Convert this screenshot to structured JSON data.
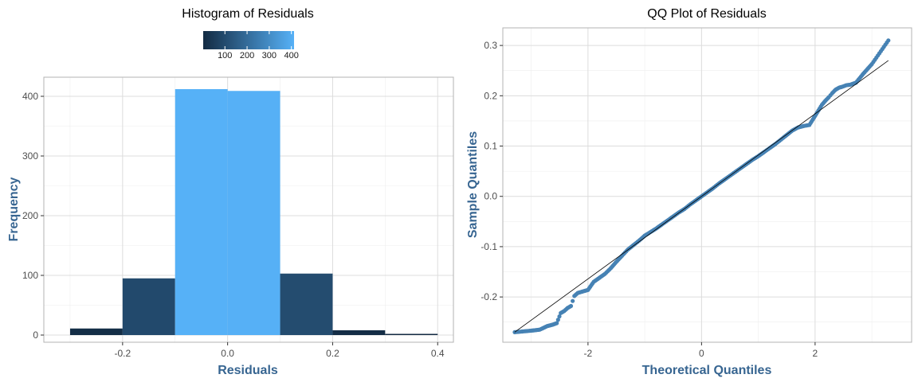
{
  "chart_data": [
    {
      "type": "bar",
      "title": "Histogram of Residuals",
      "xlabel": "Residuals",
      "ylabel": "Frequency",
      "bins": [
        {
          "x0": -0.3,
          "x1": -0.2,
          "value": 11
        },
        {
          "x0": -0.2,
          "x1": -0.1,
          "value": 95
        },
        {
          "x0": -0.1,
          "x1": 0.0,
          "value": 412
        },
        {
          "x0": 0.0,
          "x1": 0.1,
          "value": 409
        },
        {
          "x0": 0.1,
          "x1": 0.2,
          "value": 103
        },
        {
          "x0": 0.2,
          "x1": 0.3,
          "value": 8
        },
        {
          "x0": 0.3,
          "x1": 0.4,
          "value": 2
        }
      ],
      "xlim": [
        -0.35,
        0.43
      ],
      "ylim": [
        -12,
        432
      ],
      "xticks": [
        -0.2,
        0.0,
        0.2,
        0.4
      ],
      "xtick_labels": [
        "-0.2",
        "0.0",
        "0.2",
        "0.4"
      ],
      "yticks": [
        0,
        100,
        200,
        300,
        400
      ],
      "ytick_labels": [
        "0",
        "100",
        "200",
        "300",
        "400"
      ],
      "grid": true,
      "fill_scale": {
        "low": "#132B43",
        "high": "#56B1F7",
        "min": 2,
        "max": 412
      },
      "legend": {
        "position": "top",
        "ticks": [
          100,
          200,
          300,
          400
        ],
        "labels": [
          "100",
          "200",
          "300",
          "400"
        ]
      }
    },
    {
      "type": "scatter",
      "title": "QQ Plot of Residuals",
      "xlabel": "Theoretical Quantiles",
      "ylabel": "Sample Quantiles",
      "xlim": [
        -3.5,
        3.7
      ],
      "ylim": [
        -0.29,
        0.335
      ],
      "xticks": [
        -2,
        0,
        2
      ],
      "xtick_labels": [
        "-2",
        "0",
        "2"
      ],
      "yticks": [
        -0.2,
        -0.1,
        0.0,
        0.1,
        0.2,
        0.3
      ],
      "ytick_labels": [
        "-0.2",
        "-0.1",
        "0.0",
        "0.1",
        "0.2",
        "0.3"
      ],
      "grid": true,
      "point_color": "#4682B4",
      "reference_line": {
        "x": [
          -3.29,
          3.29
        ],
        "y": [
          -0.27,
          0.27
        ]
      },
      "points": [
        [
          -3.29,
          -0.27
        ],
        [
          -3.0,
          -0.267
        ],
        [
          -2.85,
          -0.265
        ],
        [
          -2.72,
          -0.258
        ],
        [
          -2.62,
          -0.255
        ],
        [
          -2.55,
          -0.252
        ],
        [
          -2.48,
          -0.232
        ],
        [
          -2.42,
          -0.228
        ],
        [
          -2.36,
          -0.222
        ],
        [
          -2.3,
          -0.218
        ],
        [
          -2.24,
          -0.198
        ],
        [
          -2.18,
          -0.192
        ],
        [
          -2.12,
          -0.19
        ],
        [
          -2.06,
          -0.188
        ],
        [
          -2.0,
          -0.186
        ],
        [
          -1.9,
          -0.17
        ],
        [
          -1.8,
          -0.162
        ],
        [
          -1.7,
          -0.154
        ],
        [
          -1.6,
          -0.143
        ],
        [
          -1.5,
          -0.13
        ],
        [
          -1.4,
          -0.118
        ],
        [
          -1.3,
          -0.106
        ],
        [
          -1.2,
          -0.097
        ],
        [
          -1.1,
          -0.088
        ],
        [
          -1.0,
          -0.078
        ],
        [
          -0.9,
          -0.071
        ],
        [
          -0.8,
          -0.064
        ],
        [
          -0.7,
          -0.056
        ],
        [
          -0.6,
          -0.048
        ],
        [
          -0.5,
          -0.04
        ],
        [
          -0.4,
          -0.032
        ],
        [
          -0.3,
          -0.025
        ],
        [
          -0.2,
          -0.016
        ],
        [
          -0.1,
          -0.008
        ],
        [
          0.0,
          0.0
        ],
        [
          0.1,
          0.008
        ],
        [
          0.2,
          0.016
        ],
        [
          0.3,
          0.025
        ],
        [
          0.4,
          0.033
        ],
        [
          0.5,
          0.041
        ],
        [
          0.6,
          0.049
        ],
        [
          0.7,
          0.057
        ],
        [
          0.8,
          0.065
        ],
        [
          0.9,
          0.073
        ],
        [
          1.0,
          0.08
        ],
        [
          1.1,
          0.088
        ],
        [
          1.2,
          0.096
        ],
        [
          1.3,
          0.104
        ],
        [
          1.4,
          0.113
        ],
        [
          1.5,
          0.122
        ],
        [
          1.6,
          0.131
        ],
        [
          1.7,
          0.137
        ],
        [
          1.8,
          0.14
        ],
        [
          1.9,
          0.142
        ],
        [
          2.0,
          0.16
        ],
        [
          2.06,
          0.171
        ],
        [
          2.12,
          0.182
        ],
        [
          2.18,
          0.19
        ],
        [
          2.24,
          0.197
        ],
        [
          2.3,
          0.205
        ],
        [
          2.36,
          0.212
        ],
        [
          2.42,
          0.216
        ],
        [
          2.48,
          0.218
        ],
        [
          2.55,
          0.221
        ],
        [
          2.62,
          0.222
        ],
        [
          2.72,
          0.226
        ],
        [
          2.85,
          0.244
        ],
        [
          3.0,
          0.263
        ],
        [
          3.29,
          0.31
        ]
      ]
    }
  ]
}
